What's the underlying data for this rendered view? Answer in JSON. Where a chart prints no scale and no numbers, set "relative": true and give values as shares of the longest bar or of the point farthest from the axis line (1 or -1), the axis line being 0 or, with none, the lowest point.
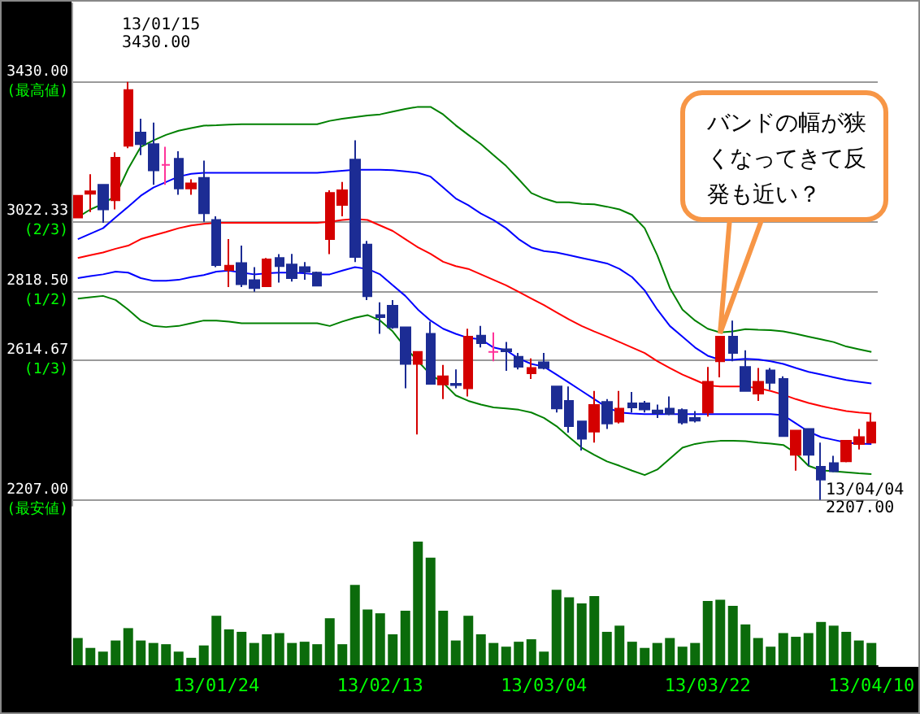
{
  "chart_data": [
    {
      "type": "candlestick",
      "categories": [
        null,
        null,
        null,
        null,
        null,
        null,
        null,
        null,
        null,
        null,
        null,
        null,
        null,
        null,
        null,
        null,
        null,
        null,
        null,
        null,
        null,
        null,
        null,
        null,
        null,
        null,
        null,
        null,
        null,
        null,
        null,
        null,
        null,
        null,
        null,
        null,
        null,
        null,
        null,
        null,
        null,
        null,
        null,
        null,
        null,
        null,
        null,
        null,
        null,
        null,
        null,
        null,
        null,
        null,
        null,
        null,
        null,
        null,
        null,
        null,
        null,
        null,
        null,
        null
      ],
      "ohlc": [
        [
          3033,
          3097,
          3033,
          3097
        ],
        [
          3103,
          3160,
          3049,
          3110
        ],
        [
          3129,
          3129,
          3018,
          3057
        ],
        [
          3084,
          3224,
          3057,
          3208
        ],
        [
          3243,
          3430,
          3236,
          3406
        ],
        [
          3282,
          3322,
          3216,
          3248
        ],
        [
          3248,
          3311,
          3129,
          3171
        ],
        [
          3187,
          3240,
          3129,
          3187
        ],
        [
          3205,
          3227,
          3100,
          3118
        ],
        [
          3118,
          3145,
          3100,
          3133
        ],
        [
          3149,
          3200,
          3021,
          3046
        ],
        [
          3026,
          3037,
          2888,
          2894
        ],
        [
          2880,
          2970,
          2830,
          2892
        ],
        [
          2900,
          2951,
          2830,
          2838
        ],
        [
          2850,
          2888,
          2816,
          2827
        ],
        [
          2832,
          2915,
          2830,
          2911
        ],
        [
          2915,
          2926,
          2843,
          2891
        ],
        [
          2896,
          2927,
          2846,
          2856
        ],
        [
          2888,
          2903,
          2851,
          2875
        ],
        [
          2872,
          2875,
          2832,
          2834
        ],
        [
          2970,
          3113,
          2926,
          3105
        ],
        [
          3070,
          3137,
          3037,
          3113
        ],
        [
          3203,
          3259,
          2903,
          2918
        ],
        [
          2954,
          2965,
          2792,
          2803
        ],
        [
          2748,
          2785,
          2693,
          2742
        ],
        [
          2775,
          2792,
          2708,
          2712
        ],
        [
          2712,
          2712,
          2534,
          2605
        ],
        [
          2605,
          2640,
          2399,
          2640
        ],
        [
          2693,
          2729,
          2547,
          2547
        ],
        [
          2545,
          2602,
          2502,
          2569
        ],
        [
          2547,
          2589,
          2534,
          2543
        ],
        [
          2534,
          2708,
          2510,
          2685
        ],
        [
          2688,
          2716,
          2653,
          2666
        ],
        [
          2640,
          2697,
          2613,
          2640
        ],
        [
          2648,
          2669,
          2585,
          2642
        ],
        [
          2626,
          2637,
          2589,
          2597
        ],
        [
          2578,
          2621,
          2561,
          2593
        ],
        [
          2610,
          2637,
          2589,
          2593
        ],
        [
          2539,
          2539,
          2463,
          2475
        ],
        [
          2497,
          2539,
          2404,
          2423
        ],
        [
          2437,
          2437,
          2352,
          2386
        ],
        [
          2407,
          2526,
          2375,
          2485
        ],
        [
          2494,
          2502,
          2415,
          2431
        ],
        [
          2436,
          2526,
          2431,
          2474
        ],
        [
          2490,
          2523,
          2463,
          2478
        ],
        [
          2490,
          2497,
          2463,
          2472
        ],
        [
          2469,
          2486,
          2447,
          2461
        ],
        [
          2474,
          2510,
          2455,
          2459
        ],
        [
          2470,
          2475,
          2428,
          2434
        ],
        [
          2447,
          2467,
          2434,
          2439
        ],
        [
          2463,
          2596,
          2451,
          2553
        ],
        [
          2613,
          2685,
          2566,
          2685
        ],
        [
          2685,
          2732,
          2613,
          2637
        ],
        [
          2596,
          2645,
          2526,
          2526
        ],
        [
          2518,
          2593,
          2497,
          2553
        ],
        [
          2586,
          2593,
          2529,
          2550
        ],
        [
          2561,
          2569,
          2394,
          2394
        ],
        [
          2339,
          2410,
          2293,
          2410
        ],
        [
          2415,
          2415,
          2307,
          2339
        ],
        [
          2304,
          2375,
          2207,
          2267
        ],
        [
          2315,
          2336,
          2288,
          2291
        ],
        [
          2320,
          2380,
          2317,
          2380
        ],
        [
          2371,
          2415,
          2355,
          2391
        ],
        [
          2375,
          2459,
          2375,
          2434
        ]
      ],
      "colors": [
        "#d40000",
        "#d40000",
        "#1c2c94",
        "#d40000",
        "#d40000",
        "#1c2c94",
        "#1c2c94",
        "#ff3399",
        "#1c2c94",
        "#d40000",
        "#1c2c94",
        "#1c2c94",
        "#d40000",
        "#1c2c94",
        "#1c2c94",
        "#d40000",
        "#1c2c94",
        "#1c2c94",
        "#1c2c94",
        "#1c2c94",
        "#d40000",
        "#d40000",
        "#1c2c94",
        "#1c2c94",
        "#1c2c94",
        "#1c2c94",
        "#1c2c94",
        "#d40000",
        "#1c2c94",
        "#d40000",
        "#1c2c94",
        "#d40000",
        "#1c2c94",
        "#ff3399",
        "#1c2c94",
        "#1c2c94",
        "#d40000",
        "#1c2c94",
        "#1c2c94",
        "#1c2c94",
        "#1c2c94",
        "#d40000",
        "#1c2c94",
        "#d40000",
        "#1c2c94",
        "#1c2c94",
        "#1c2c94",
        "#1c2c94",
        "#1c2c94",
        "#1c2c94",
        "#d40000",
        "#d40000",
        "#1c2c94",
        "#1c2c94",
        "#d40000",
        "#1c2c94",
        "#1c2c94",
        "#d40000",
        "#1c2c94",
        "#1c2c94",
        "#1c2c94",
        "#d40000",
        "#d40000",
        "#d40000"
      ],
      "series": [
        {
          "type": "line",
          "color": "#008000",
          "values": [
            3034,
            3057,
            3073,
            3097,
            3176,
            3240,
            3259,
            3275,
            3287,
            3295,
            3302,
            3303,
            3305,
            3306,
            3306,
            3306,
            3306,
            3306,
            3306,
            3306,
            3316,
            3322,
            3327,
            3332,
            3335,
            3343,
            3351,
            3357,
            3357,
            3335,
            3303,
            3275,
            3248,
            3216,
            3184,
            3145,
            3105,
            3089,
            3078,
            3078,
            3073,
            3072,
            3065,
            3057,
            3041,
            3002,
            2923,
            2827,
            2764,
            2732,
            2708,
            2697,
            2700,
            2707,
            2705,
            2704,
            2700,
            2693,
            2685,
            2677,
            2669,
            2656,
            2648,
            2640
          ]
        },
        {
          "type": "line",
          "color": "#0000ff",
          "values": [
            2970,
            2986,
            3002,
            3034,
            3065,
            3097,
            3121,
            3137,
            3153,
            3161,
            3164,
            3164,
            3164,
            3164,
            3164,
            3164,
            3164,
            3164,
            3164,
            3164,
            3167,
            3170,
            3173,
            3173,
            3173,
            3172,
            3168,
            3164,
            3153,
            3121,
            3089,
            3069,
            3045,
            3026,
            3002,
            2970,
            2946,
            2935,
            2931,
            2923,
            2915,
            2907,
            2899,
            2883,
            2859,
            2820,
            2764,
            2716,
            2685,
            2653,
            2629,
            2617,
            2617,
            2620,
            2618,
            2613,
            2605,
            2593,
            2582,
            2574,
            2566,
            2558,
            2553,
            2548
          ]
        },
        {
          "type": "line",
          "color": "#ff0000",
          "values": [
            2915,
            2923,
            2931,
            2942,
            2951,
            2970,
            2981,
            2991,
            3002,
            3010,
            3015,
            3018,
            3018,
            3018,
            3018,
            3018,
            3018,
            3018,
            3018,
            3018,
            3021,
            3026,
            3029,
            3026,
            3010,
            2994,
            2970,
            2946,
            2927,
            2904,
            2891,
            2883,
            2867,
            2851,
            2835,
            2816,
            2796,
            2777,
            2756,
            2735,
            2716,
            2700,
            2685,
            2669,
            2653,
            2637,
            2613,
            2593,
            2574,
            2558,
            2542,
            2539,
            2539,
            2539,
            2534,
            2526,
            2515,
            2502,
            2491,
            2482,
            2474,
            2467,
            2463,
            2460
          ]
        },
        {
          "type": "line",
          "color": "#0000ff",
          "values": [
            2856,
            2862,
            2867,
            2875,
            2872,
            2856,
            2848,
            2848,
            2851,
            2859,
            2865,
            2875,
            2878,
            2872,
            2867,
            2870,
            2872,
            2872,
            2870,
            2867,
            2867,
            2878,
            2888,
            2883,
            2867,
            2835,
            2804,
            2764,
            2732,
            2708,
            2693,
            2681,
            2677,
            2653,
            2645,
            2621,
            2605,
            2597,
            2574,
            2550,
            2526,
            2502,
            2478,
            2463,
            2460,
            2458,
            2458,
            2458,
            2458,
            2458,
            2458,
            2458,
            2458,
            2458,
            2458,
            2458,
            2455,
            2431,
            2407,
            2391,
            2383,
            2375,
            2372,
            2371
          ]
        },
        {
          "type": "line",
          "color": "#008000",
          "values": [
            2796,
            2800,
            2804,
            2792,
            2764,
            2732,
            2716,
            2713,
            2716,
            2724,
            2732,
            2732,
            2729,
            2724,
            2724,
            2724,
            2724,
            2724,
            2724,
            2724,
            2716,
            2729,
            2740,
            2748,
            2732,
            2700,
            2653,
            2613,
            2574,
            2550,
            2513,
            2497,
            2486,
            2478,
            2475,
            2471,
            2463,
            2447,
            2423,
            2391,
            2360,
            2339,
            2320,
            2307,
            2293,
            2280,
            2296,
            2328,
            2360,
            2371,
            2377,
            2380,
            2380,
            2379,
            2375,
            2372,
            2368,
            2344,
            2307,
            2294,
            2291,
            2288,
            2285,
            2283
          ]
        }
      ],
      "ylim": [
        2190,
        3660
      ],
      "yticks": [
        {
          "value": 3430,
          "label": "3430.00\n(最高値)"
        },
        {
          "value": 3022.33,
          "label": "3022.33\n(2/3)"
        },
        {
          "value": 2818.5,
          "label": "2818.50\n(1/2)"
        },
        {
          "value": 2614.67,
          "label": "2614.67\n(1/3)"
        },
        {
          "value": 2207,
          "label": "2207.00\n(最安値)"
        }
      ],
      "grid": "y",
      "tick_labels": "y",
      "annotations": [
        "13/01/15\n3430.00",
        "13/04/04\n2207.00",
        "バンドの幅が狭くなってきて反発も近い？"
      ]
    },
    {
      "type": "bar",
      "relative": true,
      "categories": [
        null,
        null,
        null,
        null,
        null,
        null,
        null,
        null,
        null,
        null,
        null,
        "13/01/24",
        null,
        null,
        null,
        null,
        null,
        null,
        null,
        null,
        null,
        null,
        null,
        null,
        "13/02/13",
        null,
        null,
        null,
        null,
        null,
        null,
        null,
        null,
        null,
        null,
        null,
        null,
        "13/03/04",
        null,
        null,
        null,
        null,
        null,
        null,
        null,
        null,
        null,
        null,
        null,
        null,
        "13/03/22",
        null,
        null,
        null,
        null,
        null,
        null,
        null,
        null,
        null,
        null,
        null,
        null,
        "13/04/10"
      ],
      "values": [
        0.22,
        0.14,
        0.11,
        0.2,
        0.3,
        0.2,
        0.18,
        0.17,
        0.11,
        0.06,
        0.16,
        0.4,
        0.29,
        0.27,
        0.18,
        0.25,
        0.26,
        0.18,
        0.19,
        0.17,
        0.38,
        0.17,
        0.65,
        0.45,
        0.42,
        0.25,
        0.44,
        1,
        0.87,
        0.44,
        0.2,
        0.4,
        0.25,
        0.18,
        0.15,
        0.19,
        0.21,
        0.11,
        0.61,
        0.55,
        0.5,
        0.56,
        0.27,
        0.32,
        0.19,
        0.14,
        0.18,
        0.22,
        0.15,
        0.18,
        0.52,
        0.53,
        0.48,
        0.33,
        0.22,
        0.15,
        0.26,
        0.23,
        0.26,
        0.35,
        0.32,
        0.27,
        0.2,
        0.18
      ],
      "color": "#0b6b0b",
      "tick_labels": "x"
    }
  ]
}
